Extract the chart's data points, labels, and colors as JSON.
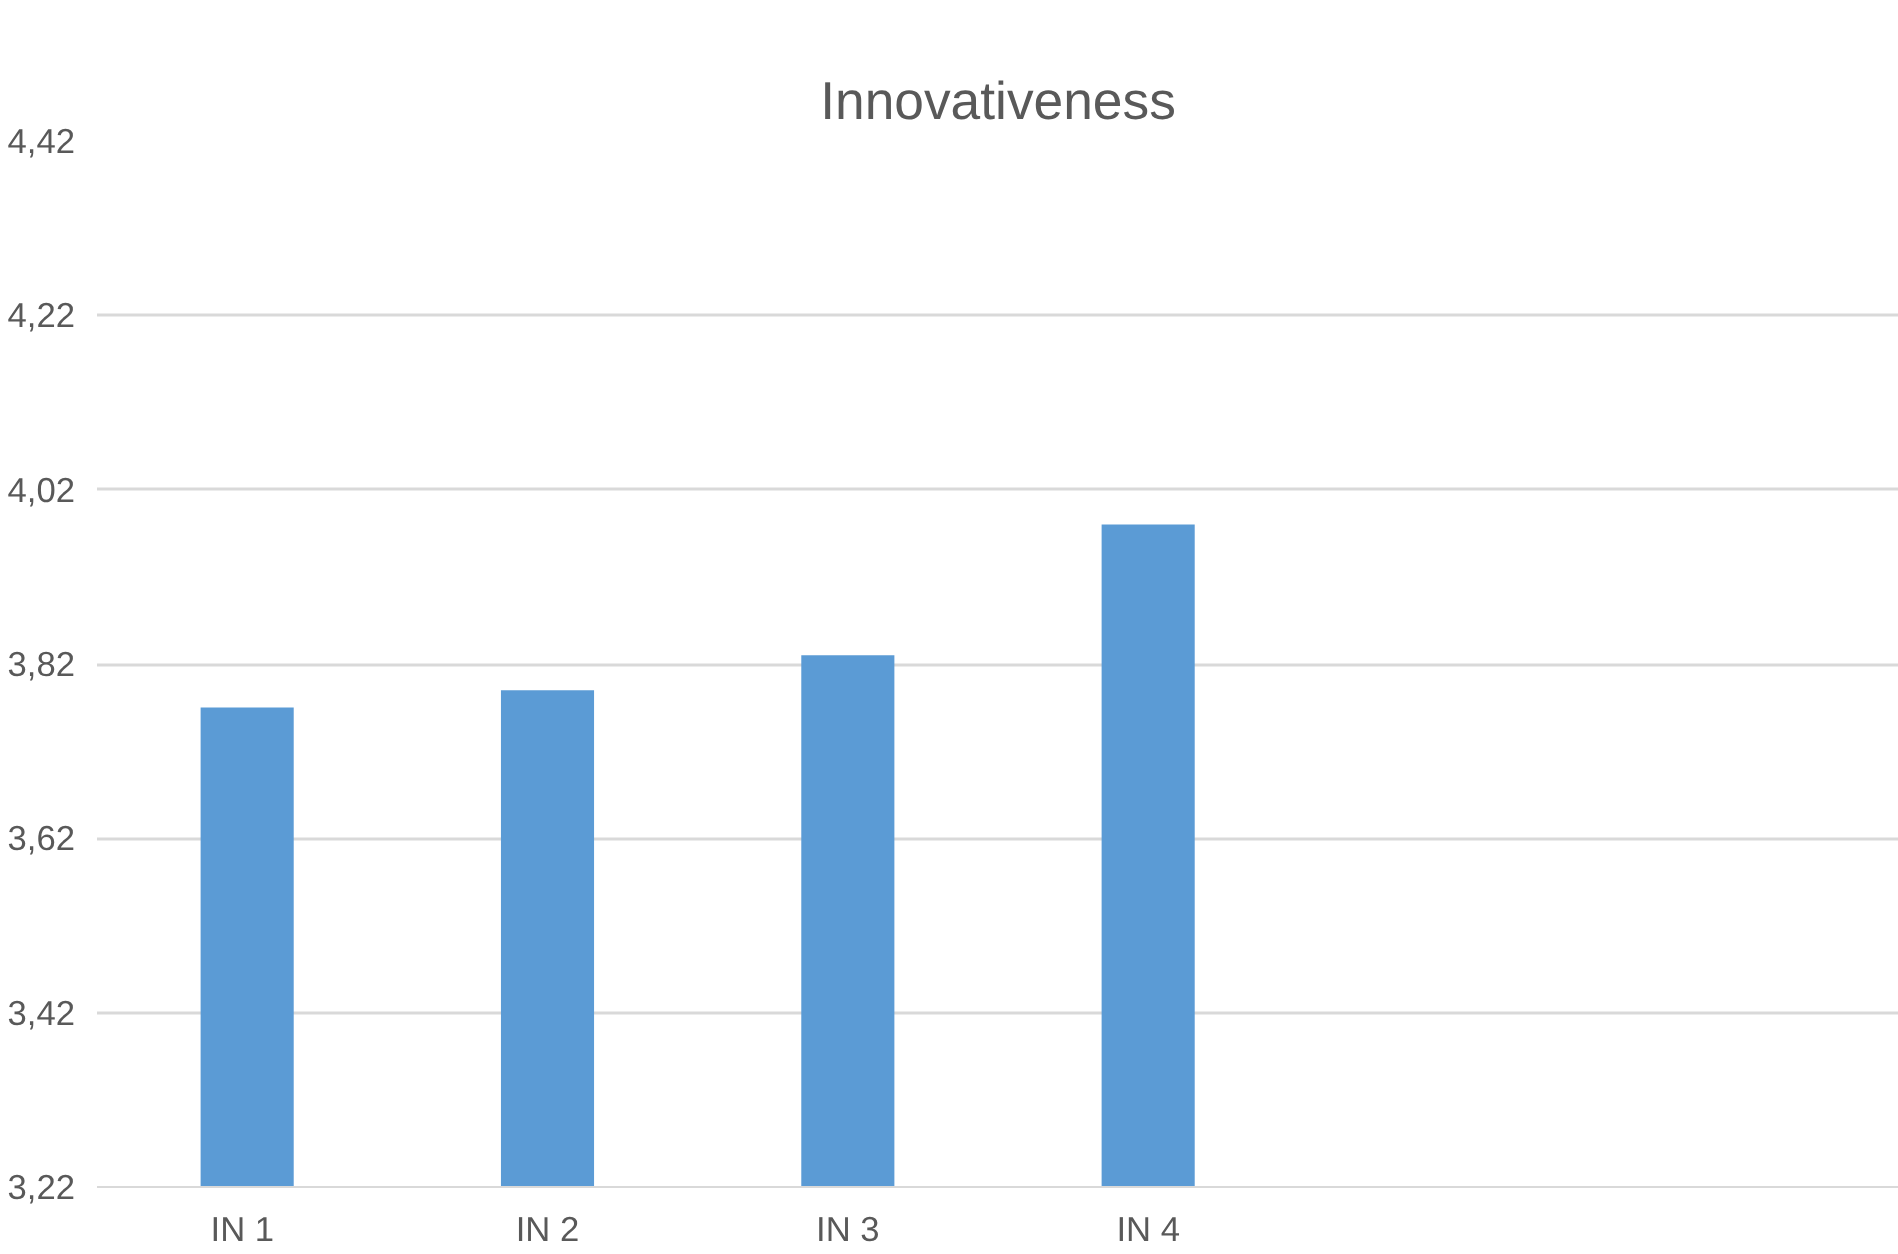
{
  "chart_data": {
    "type": "bar",
    "title": "Innovativeness",
    "categories": [
      "IN  1",
      "IN 2",
      "IN 3",
      "IN 4",
      null,
      null
    ],
    "values": [
      3.77,
      3.79,
      3.83,
      3.98,
      null,
      null
    ],
    "color": "#5b9bd5",
    "ylim": [
      3.22,
      4.42
    ],
    "yticks": [
      {
        "value": 3.22,
        "label": "3,22"
      },
      {
        "value": 3.42,
        "label": "3,42"
      },
      {
        "value": 3.62,
        "label": "3,62"
      },
      {
        "value": 3.82,
        "label": "3,82"
      },
      {
        "value": 4.02,
        "label": "4,02"
      },
      {
        "value": 4.22,
        "label": "4,22"
      },
      {
        "value": 4.42,
        "label": "4,42"
      }
    ],
    "grid": "y"
  }
}
